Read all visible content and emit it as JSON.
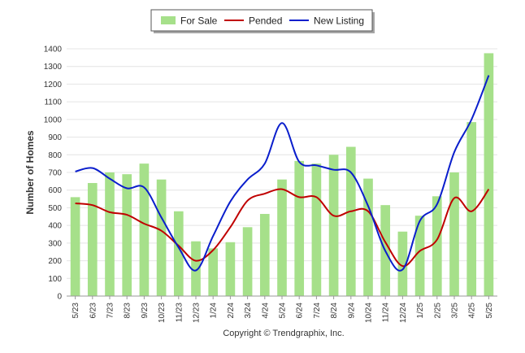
{
  "chart_data": {
    "type": "bar",
    "ylabel": "Number of Homes",
    "ylim": [
      0,
      1400
    ],
    "yticks": [
      0,
      100,
      200,
      300,
      400,
      500,
      600,
      700,
      800,
      900,
      1000,
      1100,
      1200,
      1300,
      1400
    ],
    "grid": true,
    "legend_position": "top-center",
    "categories": [
      "5/23",
      "6/23",
      "7/23",
      "8/23",
      "9/23",
      "10/23",
      "11/23",
      "12/23",
      "1/24",
      "2/24",
      "3/24",
      "4/24",
      "5/24",
      "6/24",
      "7/24",
      "8/24",
      "9/24",
      "10/24",
      "11/24",
      "12/24",
      "1/25",
      "2/25",
      "3/25",
      "4/25",
      "5/25"
    ],
    "series": [
      {
        "name": "For Sale",
        "kind": "bar",
        "color": "#a6e08a",
        "values": [
          560,
          640,
          700,
          690,
          750,
          660,
          480,
          310,
          270,
          305,
          390,
          465,
          660,
          765,
          750,
          800,
          845,
          665,
          515,
          365,
          455,
          565,
          700,
          985,
          1375
        ]
      },
      {
        "name": "Pended",
        "kind": "line",
        "color": "#c00000",
        "values": [
          525,
          515,
          475,
          460,
          410,
          370,
          285,
          200,
          260,
          390,
          540,
          580,
          605,
          560,
          560,
          455,
          480,
          480,
          305,
          170,
          255,
          320,
          555,
          480,
          605
        ]
      },
      {
        "name": "New Listing",
        "kind": "line",
        "color": "#0a1ecc",
        "values": [
          705,
          725,
          665,
          610,
          615,
          445,
          275,
          145,
          340,
          535,
          660,
          750,
          980,
          760,
          740,
          715,
          700,
          510,
          255,
          150,
          425,
          520,
          815,
          1000,
          1250
        ]
      }
    ]
  },
  "footer": {
    "copyright": "Copyright © Trendgraphix, Inc."
  }
}
